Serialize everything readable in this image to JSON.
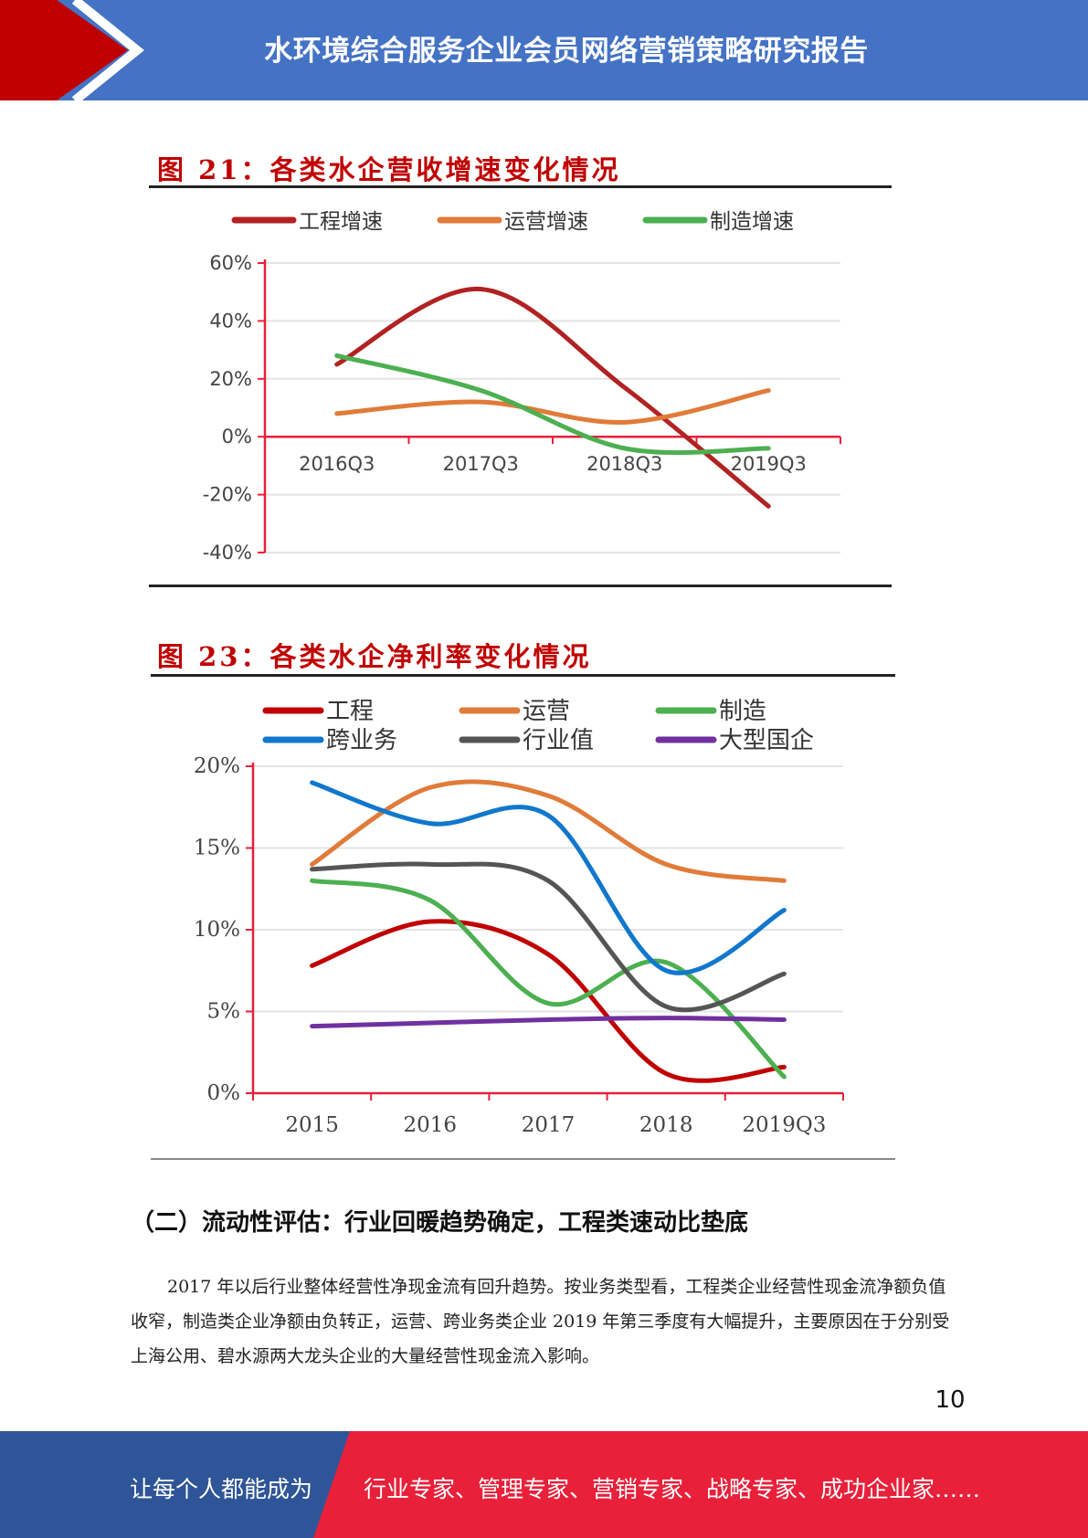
{
  "header": {
    "title": "水环境综合服务企业会员网络营销策略研究报告",
    "colors": {
      "bar": "#4472c4",
      "arrow": "#c00000"
    }
  },
  "chart_data": [
    {
      "type": "line",
      "title": "图 21：各类水企营收增速变化情况",
      "categories": [
        "2016Q3",
        "2017Q3",
        "2018Q3",
        "2019Q3"
      ],
      "yticks": [
        "60%",
        "40%",
        "20%",
        "0%",
        "-20%",
        "-40%"
      ],
      "ylim": [
        -40,
        60
      ],
      "unit": "%",
      "legend_position": "top",
      "series": [
        {
          "name": "工程增速",
          "color": "#b22222",
          "values": [
            25,
            51,
            17,
            -24
          ]
        },
        {
          "name": "运营增速",
          "color": "#e07b39",
          "values": [
            8,
            12,
            5,
            16
          ]
        },
        {
          "name": "制造增速",
          "color": "#4caf50",
          "values": [
            28,
            16,
            -4,
            -4
          ]
        }
      ]
    },
    {
      "type": "line",
      "title": "图 23：各类水企净利率变化情况",
      "categories": [
        "2015",
        "2016",
        "2017",
        "2018",
        "2019Q3"
      ],
      "yticks": [
        "20%",
        "15%",
        "10%",
        "5%",
        "0%"
      ],
      "ylim": [
        0,
        20
      ],
      "unit": "%",
      "legend_position": "top",
      "series": [
        {
          "name": "工程",
          "color": "#c00000",
          "values": [
            7.8,
            10.5,
            8.5,
            1.2,
            1.6
          ]
        },
        {
          "name": "运营",
          "color": "#e07b39",
          "values": [
            14,
            18.7,
            18.2,
            14,
            13
          ]
        },
        {
          "name": "制造",
          "color": "#4caf50",
          "values": [
            13,
            11.8,
            5.5,
            8,
            1
          ]
        },
        {
          "name": "跨业务",
          "color": "#1177cc",
          "values": [
            19,
            16.5,
            17,
            7.5,
            11.2
          ]
        },
        {
          "name": "行业值",
          "color": "#555555",
          "values": [
            13.7,
            14,
            13,
            5.3,
            7.3
          ]
        },
        {
          "name": "大型国企",
          "color": "#7030a0",
          "values": [
            4.1,
            4.3,
            4.5,
            4.6,
            4.5
          ]
        }
      ]
    }
  ],
  "section": {
    "heading": "（二）流动性评估：行业回暖趋势确定，工程类速动比垫底",
    "paragraph": "2017 年以后行业整体经营性净现金流有回升趋势。按业务类型看，工程类企业经营性现金流净额负值收窄，制造类企业净额由负转正，运营、跨业务类企业 2019 年第三季度有大幅提升，主要原因在于分别受上海公用、碧水源两大龙头企业的大量经营性现金流入影响。"
  },
  "page_number": "10",
  "footer": {
    "left": "让每个人都能成为",
    "right": "行业专家、管理专家、营销专家、战略专家、成功企业家……",
    "colors": {
      "left": "#2e5597",
      "right": "#e8203a"
    }
  }
}
